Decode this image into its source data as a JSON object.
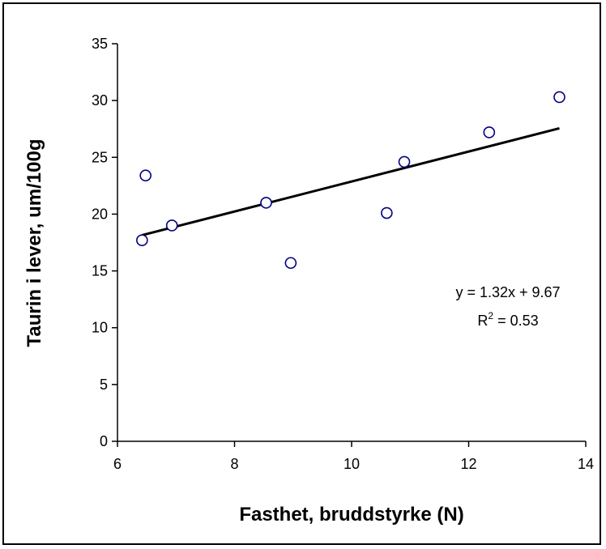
{
  "chart_data": {
    "type": "scatter",
    "xlabel": "Fasthet, bruddstyrke (N)",
    "ylabel": "Taurin i lever, um/100g",
    "xlim": [
      6,
      14
    ],
    "ylim": [
      0,
      35
    ],
    "xticks": [
      6,
      8,
      10,
      12,
      14
    ],
    "yticks": [
      0,
      5,
      10,
      15,
      20,
      25,
      30,
      35
    ],
    "grid": false,
    "legend": "none",
    "marker": "open-circle",
    "x": [
      6.42,
      6.48,
      6.93,
      8.54,
      8.96,
      10.6,
      10.9,
      12.35,
      13.55
    ],
    "y": [
      17.7,
      23.4,
      19.0,
      21.0,
      15.7,
      20.1,
      24.6,
      27.2,
      30.3
    ],
    "trendline": {
      "slope": 1.32,
      "intercept": 9.67,
      "x_range": [
        6.42,
        13.55
      ],
      "equation": "y = 1.32x + 9.67",
      "r2_prefix": "R",
      "r2_sup": "2",
      "r2_suffix": " = 0.53"
    }
  },
  "colors": {
    "axis": "#000000",
    "marker_stroke": "#000080",
    "trendline": "#000000"
  }
}
